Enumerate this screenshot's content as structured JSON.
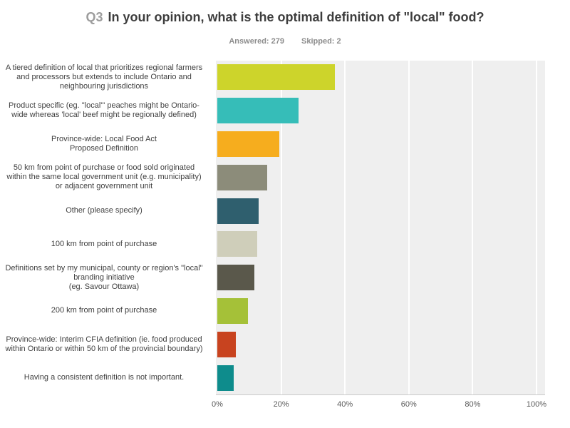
{
  "header": {
    "question_number": "Q3",
    "title": "In your opinion, what is the optimal definition of \"local\" food?",
    "answered_label": "Answered: 279",
    "skipped_label": "Skipped: 2"
  },
  "chart_data": {
    "type": "bar",
    "orientation": "horizontal",
    "title": "Q3 In your opinion, what is the optimal definition of \"local\" food?",
    "answered": 279,
    "skipped": 2,
    "categories": [
      "A tiered definition of local that prioritizes regional farmers and processors but extends to include Ontario and neighbouring jurisdictions",
      "Product specific (eg. \"local'\" peaches might be Ontario-wide whereas 'local' beef might be regionally defined)",
      "Province-wide: Local Food Act\nProposed Definition",
      "50 km from point of purchase or food sold originated within the same local government unit (e.g. municipality) or adjacent government unit",
      "Other (please specify)",
      "100 km from point of purchase",
      "Definitions set by my municipal, county or region's \"local\" branding initiative\n(eg. Savour Ottawa)",
      "200 km from point of purchase",
      "Province-wide: Interim CFIA definition (ie. food produced within Ontario or within 50 km of the provincial boundary)",
      "Having a consistent definition is not important."
    ],
    "values": [
      36.8,
      25.4,
      19.3,
      15.6,
      12.9,
      12.5,
      11.6,
      9.6,
      5.8,
      5.1
    ],
    "bar_colors": [
      "#cdd42b",
      "#36bdb8",
      "#f6ad1e",
      "#8c8c7a",
      "#2f5f6e",
      "#cfceba",
      "#5a584b",
      "#a5c138",
      "#c8431f",
      "#0e8c8c"
    ],
    "x_ticks": [
      "0%",
      "20%",
      "40%",
      "60%",
      "80%",
      "100%"
    ],
    "xlim": [
      0,
      100
    ],
    "grid": true,
    "legend": "none",
    "plot_background": "#efefef",
    "gridline_color": "#ffffff"
  }
}
